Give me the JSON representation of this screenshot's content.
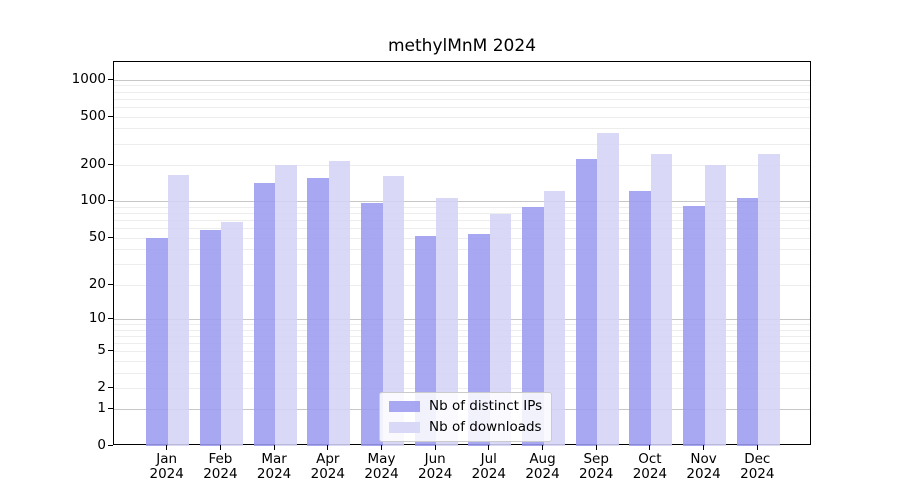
{
  "chart_data": {
    "type": "bar",
    "title": "methylMnM 2024",
    "categories": [
      "Jan",
      "Feb",
      "Mar",
      "Apr",
      "May",
      "Jun",
      "Jul",
      "Aug",
      "Sep",
      "Oct",
      "Nov",
      "Dec"
    ],
    "year": "2024",
    "series": [
      {
        "name": "Nb of distinct IPs",
        "color": "#9b9bf0",
        "values": [
          50,
          58,
          141,
          157,
          97,
          52,
          54,
          90,
          223,
          123,
          92,
          107
        ]
      },
      {
        "name": "Nb of downloads",
        "color": "#d4d4f6",
        "values": [
          166,
          67,
          200,
          217,
          162,
          107,
          78,
          121,
          369,
          246,
          201,
          247
        ]
      }
    ],
    "xlabel": "",
    "ylabel": "",
    "yscale": "log1p",
    "ylim": [
      0,
      1400
    ],
    "yticks": [
      0,
      1,
      2,
      5,
      10,
      20,
      50,
      100,
      200,
      500,
      1000
    ],
    "grid": {
      "on": true,
      "major": [
        1,
        10,
        100,
        1000
      ],
      "minor": [
        2,
        3,
        4,
        5,
        6,
        7,
        8,
        9,
        20,
        30,
        40,
        50,
        60,
        70,
        80,
        90,
        200,
        300,
        400,
        500,
        600,
        700,
        800,
        900
      ]
    },
    "legend_position": "lower center",
    "colors": {
      "background": "#ffffff",
      "spine": "#000000",
      "text": "#000000"
    }
  }
}
